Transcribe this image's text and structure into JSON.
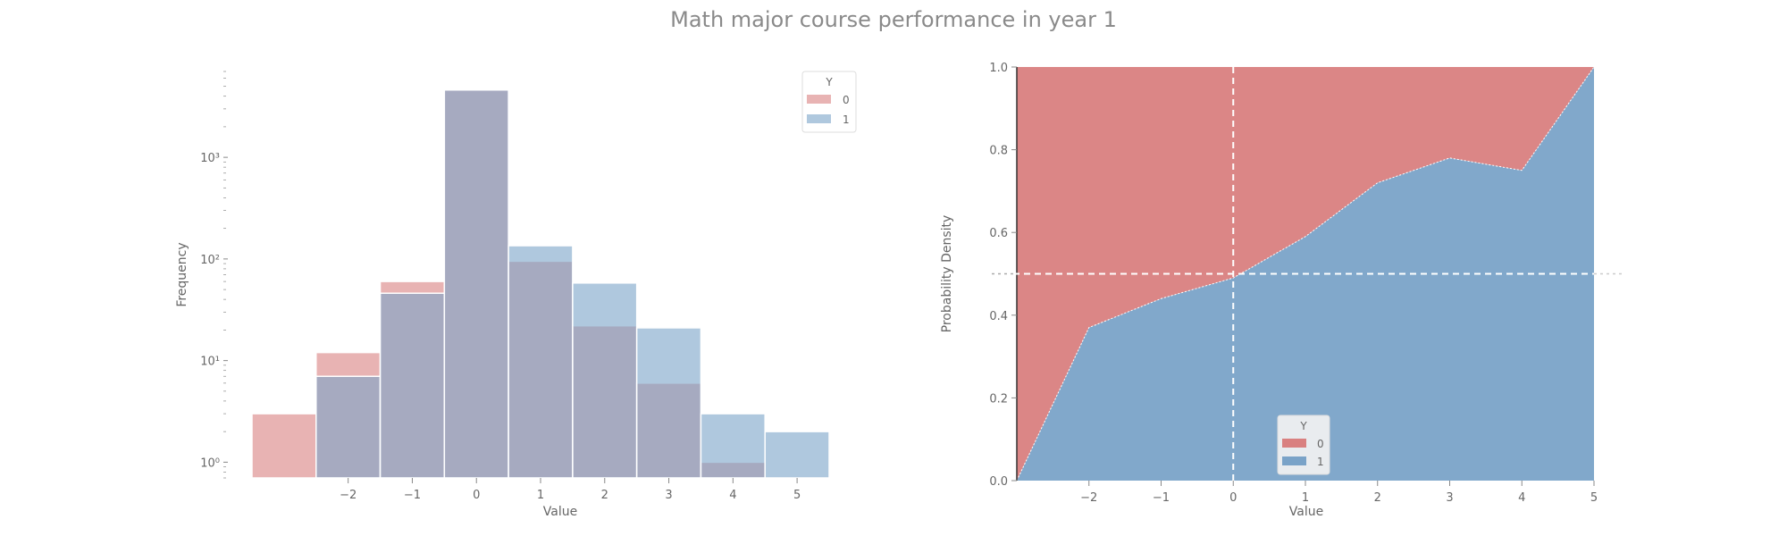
{
  "suptitle": "Math major course performance in year 1",
  "colors": {
    "class0": "#d98080",
    "class1": "#7aa3c8",
    "overlap": "#b48a96"
  },
  "chart_data": [
    {
      "type": "bar",
      "subtype": "overlapping histogram",
      "xlabel": "Value",
      "ylabel": "Frequency",
      "yscale": "log",
      "ylim": [
        0.7,
        7000
      ],
      "xlim": [
        -3.5,
        5.5
      ],
      "xticks": [
        -2,
        -1,
        0,
        1,
        2,
        3,
        4,
        5
      ],
      "xtick_labels": [
        "−2",
        "−1",
        "0",
        "1",
        "2",
        "3",
        "4",
        "5"
      ],
      "yticks": [
        1,
        10,
        100,
        1000
      ],
      "ytick_labels": [
        "10⁰",
        "10¹",
        "10²",
        "10³"
      ],
      "bin_edges": [
        -3.5,
        -2.5,
        -1.5,
        -0.5,
        0.5,
        1.5,
        2.5,
        3.5,
        4.5,
        5.5
      ],
      "legend": {
        "title": "Y",
        "placement": "top-right",
        "entries": [
          "0",
          "1"
        ]
      },
      "series": [
        {
          "name": "0",
          "values": [
            3,
            12,
            60,
            4700,
            95,
            22,
            6,
            1,
            0
          ]
        },
        {
          "name": "1",
          "values": [
            0,
            7,
            46,
            4600,
            135,
            58,
            21,
            3,
            2
          ]
        }
      ]
    },
    {
      "type": "area",
      "subtype": "stacked conditional density",
      "xlabel": "Value",
      "ylabel": "Probability Density",
      "xlim": [
        -3,
        5
      ],
      "ylim": [
        0,
        1
      ],
      "xticks": [
        -2,
        -1,
        0,
        1,
        2,
        3,
        4,
        5
      ],
      "xtick_labels": [
        "−2",
        "−1",
        "0",
        "1",
        "2",
        "3",
        "4",
        "5"
      ],
      "yticks": [
        0.0,
        0.2,
        0.4,
        0.6,
        0.8,
        1.0
      ],
      "ytick_labels": [
        "0.0",
        "0.2",
        "0.4",
        "0.6",
        "0.8",
        "1.0"
      ],
      "reference_lines": {
        "x": 0,
        "y": 0.5
      },
      "legend": {
        "title": "Y",
        "placement": "lower-center",
        "entries": [
          "0",
          "1"
        ]
      },
      "x": [
        -3,
        -2,
        -1,
        0,
        1,
        2,
        3,
        4,
        5
      ],
      "boundary": [
        0.0,
        0.37,
        0.44,
        0.49,
        0.59,
        0.72,
        0.78,
        0.75,
        1.0
      ],
      "series": [
        {
          "name": "1",
          "region": "below boundary"
        },
        {
          "name": "0",
          "region": "above boundary"
        }
      ]
    }
  ]
}
